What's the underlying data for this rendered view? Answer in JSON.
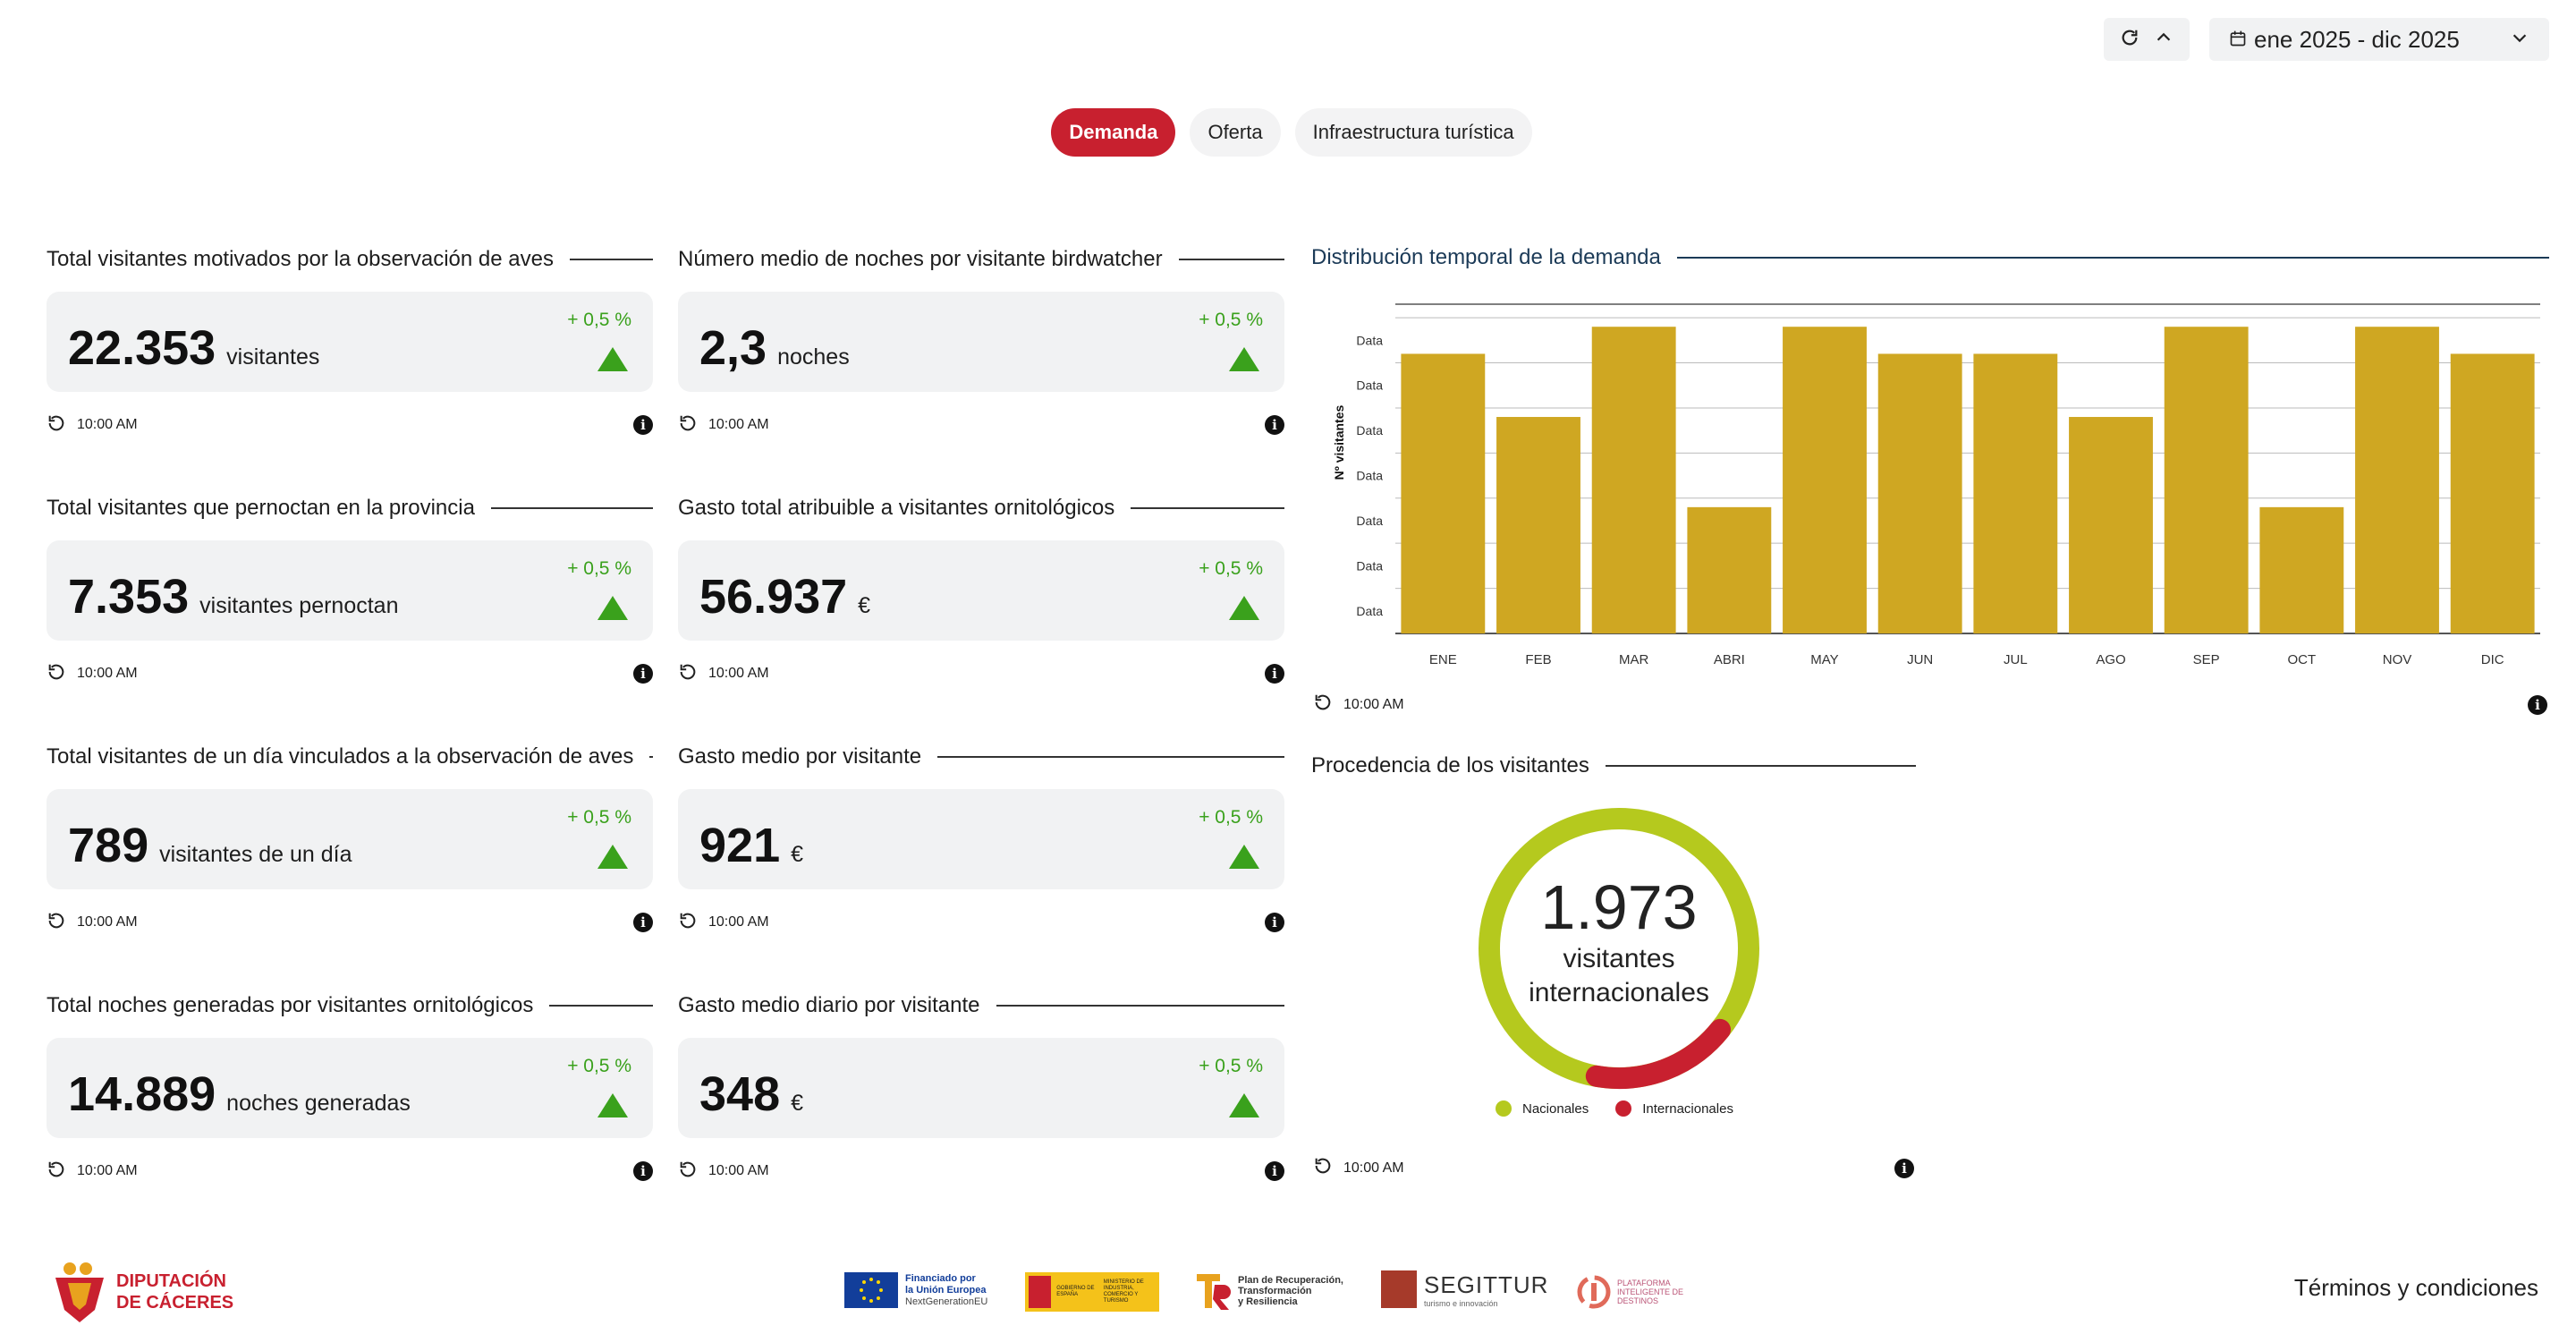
{
  "header": {
    "date_range": "ene 2025 - dic 2025"
  },
  "tabs": [
    {
      "label": "Demanda",
      "active": true
    },
    {
      "label": "Oferta",
      "active": false
    },
    {
      "label": "Infraestructura turística",
      "active": false
    }
  ],
  "kpis": [
    {
      "title": "Total visitantes motivados por la observación de aves",
      "value": "22.353",
      "unit": "visitantes",
      "delta": "+ 0,5 %",
      "time": "10:00 AM"
    },
    {
      "title": "Número medio de noches por visitante birdwatcher",
      "value": "2,3",
      "unit": "noches",
      "delta": "+ 0,5 %",
      "time": "10:00 AM"
    },
    {
      "title": "Total visitantes que pernoctan en la provincia",
      "value": "7.353",
      "unit": "visitantes pernoctan",
      "delta": "+ 0,5 %",
      "time": "10:00 AM"
    },
    {
      "title": "Gasto total atribuible a visitantes ornitológicos",
      "value": "56.937",
      "unit": "€",
      "delta": "+ 0,5 %",
      "time": "10:00 AM"
    },
    {
      "title": "Total visitantes de un día vinculados a la observación de aves",
      "value": "789",
      "unit": "visitantes de un día",
      "delta": "+ 0,5 %",
      "time": "10:00 AM"
    },
    {
      "title": "Gasto medio por visitante",
      "value": "921",
      "unit": "€",
      "delta": "+ 0,5 %",
      "time": "10:00 AM"
    },
    {
      "title": "Total noches generadas por visitantes ornitológicos",
      "value": "14.889",
      "unit": "noches generadas",
      "delta": "+ 0,5 %",
      "time": "10:00 AM"
    },
    {
      "title": "Gasto medio diario por visitante",
      "value": "348",
      "unit": "€",
      "delta": "+ 0,5 %",
      "time": "10:00 AM"
    }
  ],
  "distribution": {
    "title": "Distribución temporal de la demanda",
    "time": "10:00 AM"
  },
  "chart_data": {
    "type": "bar",
    "ylabel": "Nº visitantes",
    "ytick_labels": [
      "Data",
      "Data",
      "Data",
      "Data",
      "Data",
      "Data",
      "Data"
    ],
    "categories": [
      "ENE",
      "FEB",
      "MAR",
      "ABRI",
      "MAY",
      "JUN",
      "JUL",
      "AGO",
      "SEP",
      "OCT",
      "NOV",
      "DIC"
    ],
    "values": [
      6.2,
      4.8,
      6.8,
      2.8,
      6.8,
      6.2,
      6.2,
      4.8,
      6.8,
      2.8,
      6.8,
      6.2
    ],
    "ylim": [
      0,
      7.3
    ],
    "bar_color": "#cfa722",
    "grid": true
  },
  "origin": {
    "title": "Procedencia de los visitantes",
    "value": "1.973",
    "label_line1": "visitantes",
    "label_line2": "internacionales",
    "time": "10:00 AM",
    "legend": [
      {
        "label": "Nacionales",
        "color": "#b5c91e"
      },
      {
        "label": "Internacionales",
        "color": "#c8202f"
      }
    ],
    "share_internacionales": 0.17
  },
  "footer": {
    "logo_line1": "DIPUTACIÓN",
    "logo_line2": "DE CÁCERES",
    "eu_line1": "Financiado por",
    "eu_line2": "la Unión Europea",
    "eu_line3": "NextGenerationEU",
    "gob_text": "GOBIERNO DE ESPAÑA",
    "ministry_text": "MINISTERIO DE INDUSTRIA, COMERCIO Y TURISMO",
    "plan_line1": "Plan de Recuperación,",
    "plan_line2": "Transformación",
    "plan_line3": "y Resiliencia",
    "segittur": "SEGITTUR",
    "segittur_sub": "turismo e innovación",
    "platform_line1": "PLATAFORMA",
    "platform_line2": "INTELIGENTE DE",
    "platform_line3": "DESTINOS",
    "terms": "Términos y condiciones"
  },
  "colors": {
    "accent": "#c8202f",
    "positive": "#3aa11c",
    "nacionales": "#b5c91e",
    "bar": "#cfa722",
    "section_line": "#1b3a57"
  }
}
